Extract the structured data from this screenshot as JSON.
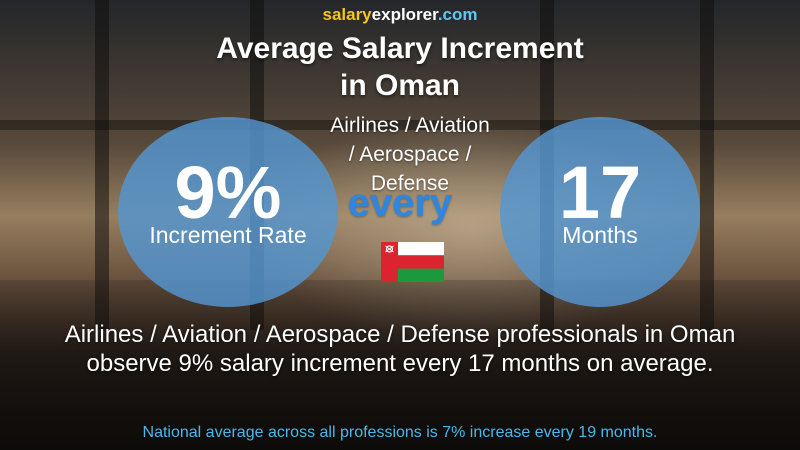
{
  "brand": {
    "part1": "salary",
    "part2": "explorer",
    "part3": ".com"
  },
  "title": {
    "line1": "Average Salary Increment",
    "line2": "in Oman"
  },
  "subtitle": {
    "line1": "Airlines / Aviation",
    "line2": "/ Aerospace /",
    "line3": "Defense"
  },
  "left_stat": {
    "value": "9%",
    "label": "Increment Rate"
  },
  "connector": "every",
  "right_stat": {
    "value": "17",
    "label": "Months"
  },
  "flag": {
    "country": "Oman",
    "colors": {
      "white": "#ffffff",
      "red": "#db2430",
      "green": "#1a9a3c"
    }
  },
  "description": "Airlines / Aviation / Aerospace / Defense professionals in Oman observe 9% salary increment every 17 months on average.",
  "national_note": "National average across all professions is 7% increase every 19 months.",
  "colors": {
    "circle": "#5496d2",
    "accent_blue": "#2f86df",
    "note_blue": "#4bb8ea",
    "brand_yellow": "#f5c518"
  }
}
